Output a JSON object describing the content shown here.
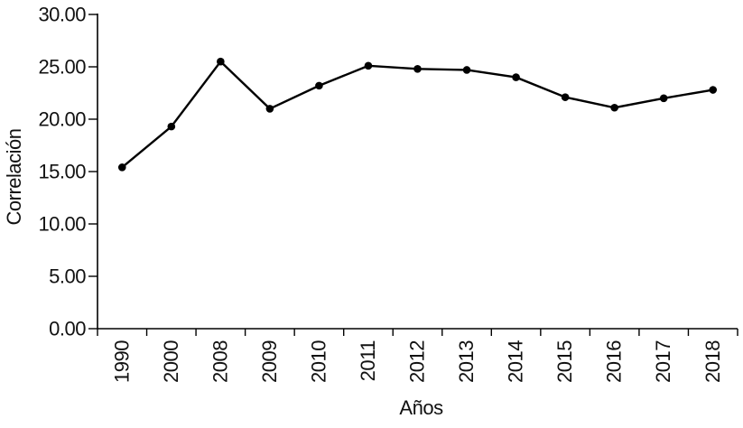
{
  "chart_data": {
    "type": "line",
    "title": "",
    "xlabel": "Años",
    "ylabel": "Correlación",
    "categories": [
      "1990",
      "2000",
      "2008",
      "2009",
      "2010",
      "2011",
      "2012",
      "2013",
      "2014",
      "2015",
      "2016",
      "2017",
      "2018"
    ],
    "series": [
      {
        "name": "Correlación",
        "values": [
          15.4,
          19.3,
          25.5,
          21.0,
          23.2,
          25.1,
          24.8,
          24.7,
          24.0,
          22.1,
          21.1,
          22.0,
          22.8
        ]
      }
    ],
    "ylim": [
      0,
      30
    ],
    "y_tick_values": [
      0,
      5,
      10,
      15,
      20,
      25,
      30
    ],
    "y_tick_labels": [
      "0.00",
      "5.00",
      "10.00",
      "15.00",
      "20.00",
      "25.00",
      "30.00"
    ],
    "x_tick_label_rotation_deg": -90,
    "grid": false,
    "legend": false,
    "marker": "circle",
    "line_color": "#000000",
    "marker_color": "#000000",
    "axis_color": "#000000",
    "text_color": "#111111"
  }
}
